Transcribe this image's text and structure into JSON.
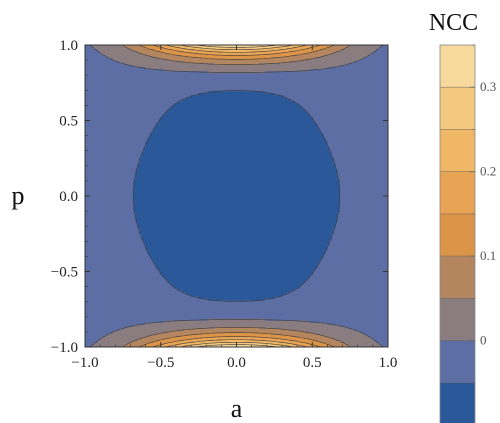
{
  "chart_data": {
    "type": "heatmap",
    "subtype": "filled-contour",
    "xlabel": "a",
    "ylabel": "p",
    "xlim": [
      -1.0,
      1.0
    ],
    "ylim": [
      -1.0,
      1.0
    ],
    "x_ticks": [
      {
        "value": -1.0,
        "label": "−1.0"
      },
      {
        "value": -0.5,
        "label": "−0.5"
      },
      {
        "value": 0.0,
        "label": "0.0"
      },
      {
        "value": 0.5,
        "label": "0.5"
      },
      {
        "value": 1.0,
        "label": "1.0"
      }
    ],
    "y_ticks": [
      {
        "value": 1.0,
        "label": "1.0"
      },
      {
        "value": 0.5,
        "label": "0.5"
      },
      {
        "value": 0.0,
        "label": "0.0"
      },
      {
        "value": -0.5,
        "label": "−0.5"
      },
      {
        "value": -1.0,
        "label": "−1.0"
      }
    ],
    "colorbar": {
      "title": "NCC",
      "range": [
        -0.1,
        0.35
      ],
      "levels": [
        -0.1,
        -0.05,
        0.0,
        0.05,
        0.1,
        0.15,
        0.2,
        0.25,
        0.3,
        0.35
      ],
      "colors": [
        "#2b5898",
        "#5c6ea4",
        "#8a7d80",
        "#b48660",
        "#dc9448",
        "#e8a454",
        "#efb766",
        "#f3c87f",
        "#f7d99d"
      ],
      "ticks": [
        {
          "value": 0.3,
          "label": "0.3"
        },
        {
          "value": 0.2,
          "label": "0.2"
        },
        {
          "value": 0.1,
          "label": "0.1"
        },
        {
          "value": 0.0,
          "label": "0"
        }
      ]
    },
    "grid": false,
    "legend": "colorbar-right"
  }
}
